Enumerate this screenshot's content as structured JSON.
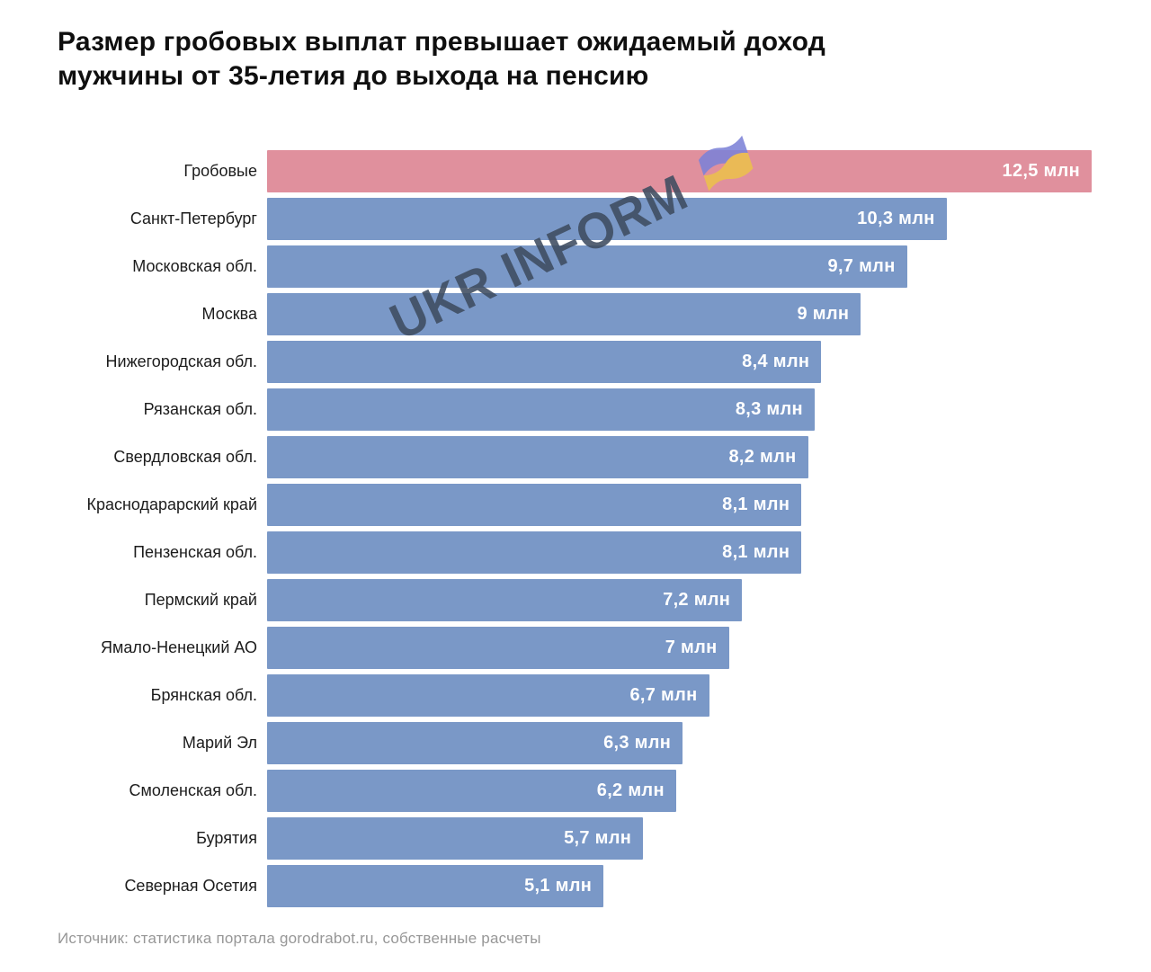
{
  "header": {
    "title_line1": "Размер гробовых выплат превышает ожидаемый доход",
    "title_line2": "мужчины от 35-летия до выхода на пенсию"
  },
  "watermark": {
    "text": "UKR INFORM",
    "flag_icon": "ukraine-flag-icon"
  },
  "footer": {
    "source": "Источник: статистика портала gorodrabot.ru, собственные расчеты"
  },
  "colors": {
    "bar_blue": "#7a98c7",
    "bar_highlight_pink": "#e0909d",
    "value_label": "#ffffff",
    "watermark_text": "#3e4c60",
    "flag_blue": "#7d82d8",
    "flag_yellow": "#ecc04d",
    "title_text": "#0f0f0f",
    "source_text": "#979797"
  },
  "chart_data": {
    "type": "bar",
    "orientation": "horizontal",
    "title": "Размер гробовых выплат превышает ожидаемый доход мужчины от 35-летия до выхода на пенсию",
    "unit": "млн",
    "xlim": [
      0,
      12.5
    ],
    "grid": false,
    "legend": false,
    "highlight_index": 0,
    "categories": [
      "Гробовые",
      "Санкт-Петербург",
      "Московская обл.",
      "Москва",
      "Нижегородская обл.",
      "Рязанская обл.",
      "Свердловская обл.",
      "Краснодарарский край",
      "Пензенская обл.",
      "Пермский край",
      "Ямало-Ненецкий АО",
      "Брянская обл.",
      "Марий Эл",
      "Смоленская обл.",
      "Бурятия",
      "Северная Осетия"
    ],
    "values": [
      12.5,
      10.3,
      9.7,
      9,
      8.4,
      8.3,
      8.2,
      8.1,
      8.1,
      7.2,
      7,
      6.7,
      6.3,
      6.2,
      5.7,
      5.1
    ],
    "value_labels": [
      "12,5 млн",
      "10,3 млн",
      "9,7 млн",
      "9 млн",
      "8,4 млн",
      "8,3 млн",
      "8,2 млн",
      "8,1 млн",
      "8,1 млн",
      "7,2 млн",
      "7 млн",
      "6,7 млн",
      "6,3 млн",
      "6,2 млн",
      "5,7 млн",
      "5,1 млн"
    ],
    "source": "Источник: статистика портала gorodrabot.ru, собственные расчеты"
  }
}
